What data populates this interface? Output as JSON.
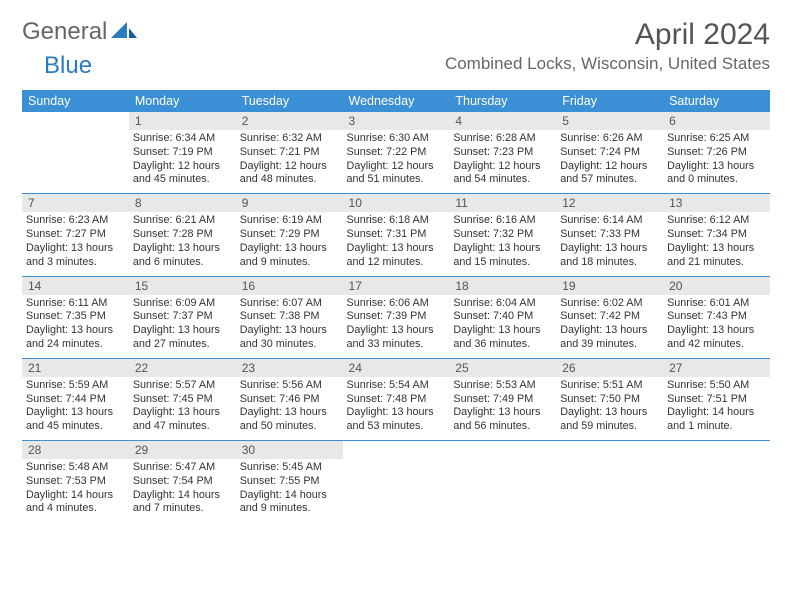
{
  "brand": {
    "part1": "General",
    "part2": "Blue"
  },
  "title": "April 2024",
  "location": "Combined Locks, Wisconsin, United States",
  "colors": {
    "header_bg": "#3b8fd4",
    "header_fg": "#ffffff",
    "daynum_bg": "#e8e8e8",
    "rule": "#3b8fd4",
    "text": "#333333",
    "brand_grey": "#666666",
    "brand_blue": "#2b7bbf"
  },
  "day_headers": [
    "Sunday",
    "Monday",
    "Tuesday",
    "Wednesday",
    "Thursday",
    "Friday",
    "Saturday"
  ],
  "weeks": [
    [
      {
        "n": "",
        "lines": []
      },
      {
        "n": "1",
        "lines": [
          "Sunrise: 6:34 AM",
          "Sunset: 7:19 PM",
          "Daylight: 12 hours",
          "and 45 minutes."
        ]
      },
      {
        "n": "2",
        "lines": [
          "Sunrise: 6:32 AM",
          "Sunset: 7:21 PM",
          "Daylight: 12 hours",
          "and 48 minutes."
        ]
      },
      {
        "n": "3",
        "lines": [
          "Sunrise: 6:30 AM",
          "Sunset: 7:22 PM",
          "Daylight: 12 hours",
          "and 51 minutes."
        ]
      },
      {
        "n": "4",
        "lines": [
          "Sunrise: 6:28 AM",
          "Sunset: 7:23 PM",
          "Daylight: 12 hours",
          "and 54 minutes."
        ]
      },
      {
        "n": "5",
        "lines": [
          "Sunrise: 6:26 AM",
          "Sunset: 7:24 PM",
          "Daylight: 12 hours",
          "and 57 minutes."
        ]
      },
      {
        "n": "6",
        "lines": [
          "Sunrise: 6:25 AM",
          "Sunset: 7:26 PM",
          "Daylight: 13 hours",
          "and 0 minutes."
        ]
      }
    ],
    [
      {
        "n": "7",
        "lines": [
          "Sunrise: 6:23 AM",
          "Sunset: 7:27 PM",
          "Daylight: 13 hours",
          "and 3 minutes."
        ]
      },
      {
        "n": "8",
        "lines": [
          "Sunrise: 6:21 AM",
          "Sunset: 7:28 PM",
          "Daylight: 13 hours",
          "and 6 minutes."
        ]
      },
      {
        "n": "9",
        "lines": [
          "Sunrise: 6:19 AM",
          "Sunset: 7:29 PM",
          "Daylight: 13 hours",
          "and 9 minutes."
        ]
      },
      {
        "n": "10",
        "lines": [
          "Sunrise: 6:18 AM",
          "Sunset: 7:31 PM",
          "Daylight: 13 hours",
          "and 12 minutes."
        ]
      },
      {
        "n": "11",
        "lines": [
          "Sunrise: 6:16 AM",
          "Sunset: 7:32 PM",
          "Daylight: 13 hours",
          "and 15 minutes."
        ]
      },
      {
        "n": "12",
        "lines": [
          "Sunrise: 6:14 AM",
          "Sunset: 7:33 PM",
          "Daylight: 13 hours",
          "and 18 minutes."
        ]
      },
      {
        "n": "13",
        "lines": [
          "Sunrise: 6:12 AM",
          "Sunset: 7:34 PM",
          "Daylight: 13 hours",
          "and 21 minutes."
        ]
      }
    ],
    [
      {
        "n": "14",
        "lines": [
          "Sunrise: 6:11 AM",
          "Sunset: 7:35 PM",
          "Daylight: 13 hours",
          "and 24 minutes."
        ]
      },
      {
        "n": "15",
        "lines": [
          "Sunrise: 6:09 AM",
          "Sunset: 7:37 PM",
          "Daylight: 13 hours",
          "and 27 minutes."
        ]
      },
      {
        "n": "16",
        "lines": [
          "Sunrise: 6:07 AM",
          "Sunset: 7:38 PM",
          "Daylight: 13 hours",
          "and 30 minutes."
        ]
      },
      {
        "n": "17",
        "lines": [
          "Sunrise: 6:06 AM",
          "Sunset: 7:39 PM",
          "Daylight: 13 hours",
          "and 33 minutes."
        ]
      },
      {
        "n": "18",
        "lines": [
          "Sunrise: 6:04 AM",
          "Sunset: 7:40 PM",
          "Daylight: 13 hours",
          "and 36 minutes."
        ]
      },
      {
        "n": "19",
        "lines": [
          "Sunrise: 6:02 AM",
          "Sunset: 7:42 PM",
          "Daylight: 13 hours",
          "and 39 minutes."
        ]
      },
      {
        "n": "20",
        "lines": [
          "Sunrise: 6:01 AM",
          "Sunset: 7:43 PM",
          "Daylight: 13 hours",
          "and 42 minutes."
        ]
      }
    ],
    [
      {
        "n": "21",
        "lines": [
          "Sunrise: 5:59 AM",
          "Sunset: 7:44 PM",
          "Daylight: 13 hours",
          "and 45 minutes."
        ]
      },
      {
        "n": "22",
        "lines": [
          "Sunrise: 5:57 AM",
          "Sunset: 7:45 PM",
          "Daylight: 13 hours",
          "and 47 minutes."
        ]
      },
      {
        "n": "23",
        "lines": [
          "Sunrise: 5:56 AM",
          "Sunset: 7:46 PM",
          "Daylight: 13 hours",
          "and 50 minutes."
        ]
      },
      {
        "n": "24",
        "lines": [
          "Sunrise: 5:54 AM",
          "Sunset: 7:48 PM",
          "Daylight: 13 hours",
          "and 53 minutes."
        ]
      },
      {
        "n": "25",
        "lines": [
          "Sunrise: 5:53 AM",
          "Sunset: 7:49 PM",
          "Daylight: 13 hours",
          "and 56 minutes."
        ]
      },
      {
        "n": "26",
        "lines": [
          "Sunrise: 5:51 AM",
          "Sunset: 7:50 PM",
          "Daylight: 13 hours",
          "and 59 minutes."
        ]
      },
      {
        "n": "27",
        "lines": [
          "Sunrise: 5:50 AM",
          "Sunset: 7:51 PM",
          "Daylight: 14 hours",
          "and 1 minute."
        ]
      }
    ],
    [
      {
        "n": "28",
        "lines": [
          "Sunrise: 5:48 AM",
          "Sunset: 7:53 PM",
          "Daylight: 14 hours",
          "and 4 minutes."
        ]
      },
      {
        "n": "29",
        "lines": [
          "Sunrise: 5:47 AM",
          "Sunset: 7:54 PM",
          "Daylight: 14 hours",
          "and 7 minutes."
        ]
      },
      {
        "n": "30",
        "lines": [
          "Sunrise: 5:45 AM",
          "Sunset: 7:55 PM",
          "Daylight: 14 hours",
          "and 9 minutes."
        ]
      },
      {
        "n": "",
        "lines": []
      },
      {
        "n": "",
        "lines": []
      },
      {
        "n": "",
        "lines": []
      },
      {
        "n": "",
        "lines": []
      }
    ]
  ]
}
